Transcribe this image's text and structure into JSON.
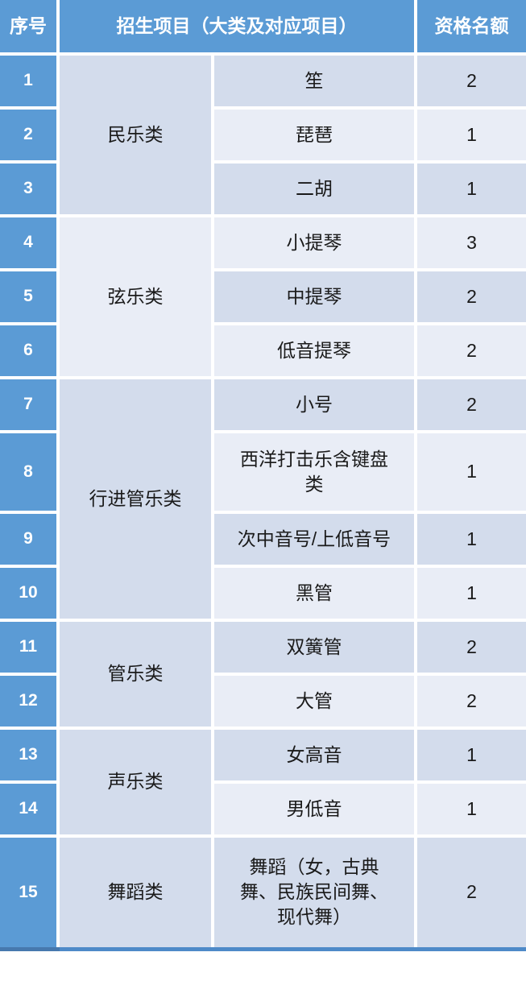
{
  "colors": {
    "header_blue": "#5B9BD5",
    "band_dark": "#D3DCEC",
    "band_light": "#E9EDF6",
    "gridline": "#FFFFFF",
    "header_text": "#FFFFFF",
    "body_text": "#1A1A1A"
  },
  "table": {
    "headers": {
      "serial": "序号",
      "project": "招生项目（大类及对应项目）",
      "quota": "资格名额"
    },
    "groups": [
      {
        "category": "民乐类",
        "items": [
          {
            "no": "1",
            "project": "笙",
            "quota": "2"
          },
          {
            "no": "2",
            "project": "琵琶",
            "quota": "1"
          },
          {
            "no": "3",
            "project": "二胡",
            "quota": "1"
          }
        ]
      },
      {
        "category": "弦乐类",
        "items": [
          {
            "no": "4",
            "project": "小提琴",
            "quota": "3"
          },
          {
            "no": "5",
            "project": "中提琴",
            "quota": "2"
          },
          {
            "no": "6",
            "project": "低音提琴",
            "quota": "2"
          }
        ]
      },
      {
        "category": "行进管乐类",
        "items": [
          {
            "no": "7",
            "project": "小号",
            "quota": "2"
          },
          {
            "no": "8",
            "project": "西洋打击乐含键盘类",
            "quota": "1"
          },
          {
            "no": "9",
            "project": "次中音号/上低音号",
            "quota": "1"
          },
          {
            "no": "10",
            "project": "黑管",
            "quota": "1"
          }
        ]
      },
      {
        "category": "管乐类",
        "items": [
          {
            "no": "11",
            "project": "双簧管",
            "quota": "2"
          },
          {
            "no": "12",
            "project": "大管",
            "quota": "2"
          }
        ]
      },
      {
        "category": "声乐类",
        "items": [
          {
            "no": "13",
            "project": "女高音",
            "quota": "1"
          },
          {
            "no": "14",
            "project": "男低音",
            "quota": "1"
          }
        ]
      },
      {
        "category": "舞蹈类",
        "items": [
          {
            "no": "15",
            "project": "舞蹈（女，古典舞、民族民间舞、现代舞）",
            "quota": "2"
          }
        ]
      }
    ]
  }
}
